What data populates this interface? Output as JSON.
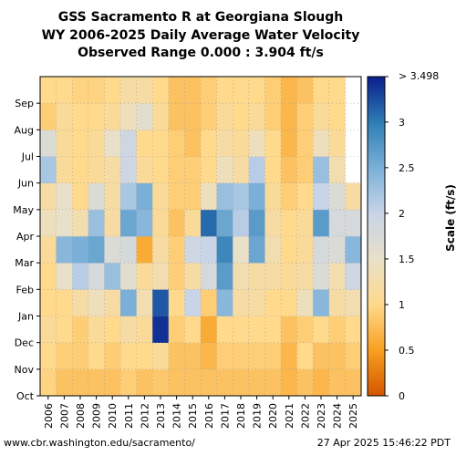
{
  "title_lines": [
    "GSS Sacramento R at Georgiana Slough",
    "WY 2006-2025 Daily Average Water Velocity",
    "Observed Range 0.000 : 3.904 ft/s"
  ],
  "footer": {
    "left": "www.cbr.washington.edu/sacramento/",
    "right": "27 Apr 2025 15:46:22 PDT"
  },
  "chart_data": {
    "type": "heatmap",
    "x_categories": [
      "2006",
      "2007",
      "2008",
      "2009",
      "2010",
      "2011",
      "2012",
      "2013",
      "2014",
      "2015",
      "2016",
      "2017",
      "2018",
      "2019",
      "2020",
      "2021",
      "2022",
      "2023",
      "2024",
      "2025"
    ],
    "y_ticks": [
      "Oct",
      "Nov",
      "Dec",
      "Jan",
      "Feb",
      "Mar",
      "Apr",
      "May",
      "Jun",
      "Jul",
      "Aug",
      "Sep"
    ],
    "colorbar": {
      "label": "Scale (ft/s)",
      "min": 0,
      "max": 3.498,
      "top_label": "> 3.498",
      "ticks": [
        "0",
        "0.5",
        "1",
        "1.5",
        "2",
        "2.5",
        "3"
      ],
      "tick_values": [
        0,
        0.5,
        1,
        1.5,
        2,
        2.5,
        3
      ],
      "colors": [
        "#d45500",
        "#f8a020",
        "#ffd98c",
        "#e8e0c8",
        "#c8d4e8",
        "#7ab0d8",
        "#2e7db4",
        "#0a1e8c"
      ]
    },
    "grid": true,
    "note": "Each column is one water year (Oct-Sep); monthly average velocity in ft/s",
    "values": [
      [
        0.95,
        1.0,
        1.1,
        1.0,
        1.0,
        1.1,
        1.4,
        1.2,
        2.2,
        1.7,
        0.9,
        1.0
      ],
      [
        0.8,
        0.9,
        1.0,
        1.0,
        1.5,
        2.4,
        1.5,
        1.5,
        1.1,
        1.1,
        1.1,
        1.0
      ],
      [
        0.8,
        0.9,
        0.9,
        1.2,
        2.1,
        2.5,
        1.3,
        1.0,
        1.0,
        1.0,
        1.0,
        0.95
      ],
      [
        0.8,
        1.0,
        1.1,
        1.4,
        1.8,
        2.6,
        2.3,
        1.7,
        1.1,
        1.1,
        1.0,
        0.95
      ],
      [
        0.8,
        0.9,
        1.0,
        1.2,
        2.3,
        1.7,
        1.2,
        1.2,
        1.2,
        1.5,
        1.1,
        1.0
      ],
      [
        0.9,
        1.0,
        1.2,
        2.5,
        1.6,
        1.8,
        2.6,
        2.2,
        1.9,
        1.9,
        1.4,
        1.2
      ],
      [
        0.8,
        1.0,
        1.1,
        1.3,
        1.1,
        0.6,
        2.4,
        2.5,
        1.1,
        1.0,
        1.6,
        1.2
      ],
      [
        0.85,
        1.1,
        3.4,
        3.2,
        1.3,
        1.2,
        1.1,
        1.1,
        1.0,
        1.0,
        1.1,
        1.0
      ],
      [
        0.8,
        0.8,
        0.9,
        1.0,
        0.9,
        0.9,
        0.8,
        0.9,
        0.9,
        0.9,
        0.8,
        0.8
      ],
      [
        0.8,
        0.8,
        1.0,
        2.0,
        1.2,
        1.9,
        1.1,
        0.9,
        0.9,
        0.8,
        0.8,
        0.8
      ],
      [
        0.8,
        0.7,
        0.6,
        0.9,
        1.8,
        2.0,
        3.1,
        1.4,
        1.0,
        1.0,
        0.9,
        0.9
      ],
      [
        0.8,
        0.9,
        1.0,
        2.4,
        2.7,
        2.9,
        2.6,
        2.3,
        1.4,
        1.2,
        1.1,
        1.0
      ],
      [
        0.8,
        0.9,
        1.0,
        1.2,
        1.3,
        1.5,
        2.1,
        2.2,
        1.2,
        1.1,
        1.0,
        1.0
      ],
      [
        0.8,
        0.9,
        1.0,
        1.2,
        1.2,
        2.6,
        2.7,
        2.5,
        2.1,
        1.4,
        1.1,
        1.0
      ],
      [
        0.8,
        0.9,
        1.0,
        1.0,
        1.2,
        1.3,
        1.2,
        1.1,
        1.0,
        1.0,
        0.9,
        0.9
      ],
      [
        0.7,
        0.7,
        0.8,
        1.0,
        1.1,
        1.0,
        1.0,
        0.9,
        0.8,
        0.7,
        0.7,
        0.7
      ],
      [
        0.8,
        1.0,
        0.9,
        1.4,
        1.2,
        1.1,
        1.1,
        1.0,
        0.9,
        0.9,
        0.9,
        0.8
      ],
      [
        0.7,
        0.8,
        1.0,
        2.4,
        1.7,
        1.8,
        2.7,
        2.0,
        2.3,
        1.4,
        1.1,
        1.0
      ],
      [
        0.8,
        0.8,
        0.9,
        1.2,
        1.3,
        1.7,
        1.8,
        1.7,
        1.3,
        1.1,
        1.0,
        1.0
      ],
      [
        0.8,
        0.9,
        1.0,
        1.3,
        1.9,
        2.4,
        1.8,
        1.2,
        null,
        null,
        null,
        null
      ]
    ]
  }
}
